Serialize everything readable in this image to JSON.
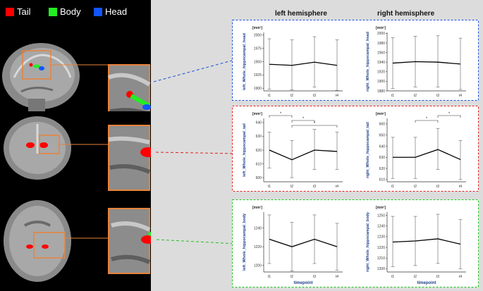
{
  "legend": [
    {
      "label": "Tail",
      "color": "#ff0000"
    },
    {
      "label": "Body",
      "color": "#22ee22"
    },
    {
      "label": "Head",
      "color": "#1155ff"
    }
  ],
  "hemispheres": {
    "left": "left hemisphere",
    "right": "right hemisphere"
  },
  "chart_data": [
    {
      "type": "line",
      "region": "head",
      "hemisphere": "left",
      "unit": "[mm³]",
      "ylabel": "left_Whole_hippocampal_head",
      "categories": [
        "t1",
        "t2",
        "t3",
        "t4"
      ],
      "values": [
        1945,
        1943,
        1949,
        1943
      ],
      "err_low": [
        1898,
        1897,
        1902,
        1896
      ],
      "err_high": [
        1993,
        1991,
        1997,
        1991
      ],
      "ylim": [
        1895,
        2005
      ],
      "ticks": [
        1900,
        1925,
        1950,
        1975,
        2000
      ],
      "xlabel": "",
      "sig": []
    },
    {
      "type": "line",
      "region": "head",
      "hemisphere": "right",
      "unit": "[mm³]",
      "ylabel": "right_Whole_hippocampal_head",
      "categories": [
        "t1",
        "t2",
        "t3",
        "t4"
      ],
      "values": [
        1938,
        1941,
        1940,
        1936
      ],
      "err_low": [
        1885,
        1888,
        1888,
        1883
      ],
      "err_high": [
        1991,
        1994,
        1995,
        1990
      ],
      "ylim": [
        1880,
        2002
      ],
      "ticks": [
        1880,
        1900,
        1920,
        1940,
        1960,
        1980,
        2000
      ],
      "xlabel": "",
      "sig": []
    },
    {
      "type": "line",
      "region": "tail",
      "hemisphere": "left",
      "unit": "[mm³]",
      "ylabel": "left_Whole_hippocampal_tail",
      "categories": [
        "t1",
        "t2",
        "t3",
        "t4"
      ],
      "values": [
        620,
        613,
        620,
        619
      ],
      "err_low": [
        607,
        600,
        606,
        606
      ],
      "err_high": [
        633,
        627,
        635,
        633
      ],
      "ylim": [
        597,
        643
      ],
      "ticks": [
        600,
        610,
        620,
        630,
        640
      ],
      "xlabel": "",
      "sig": [
        {
          "from": 0,
          "to": 1,
          "label": "*",
          "level": 0
        },
        {
          "from": 1,
          "to": 2,
          "label": "*",
          "level": 1
        },
        {
          "from": 1,
          "to": 3,
          "label": "*",
          "level": 2
        }
      ]
    },
    {
      "type": "line",
      "region": "tail",
      "hemisphere": "right",
      "unit": "[mm³]",
      "ylabel": "right_Whole_hippocampal_tail",
      "categories": [
        "t1",
        "t2",
        "t3",
        "t4"
      ],
      "values": [
        630,
        630,
        637,
        628
      ],
      "err_low": [
        611,
        611,
        619,
        610
      ],
      "err_high": [
        648,
        648,
        656,
        645
      ],
      "ylim": [
        608,
        665
      ],
      "ticks": [
        610,
        620,
        630,
        640,
        650,
        660
      ],
      "xlabel": "",
      "sig": [
        {
          "from": 1,
          "to": 2,
          "label": "*",
          "level": 1
        },
        {
          "from": 2,
          "to": 3,
          "label": "*",
          "level": 0
        }
      ]
    },
    {
      "type": "line",
      "region": "body",
      "hemisphere": "left",
      "unit": "[mm³]",
      "ylabel": "left_Whole_hippocampal_body",
      "categories": [
        "t1",
        "t2",
        "t3",
        "t4"
      ],
      "values": [
        1228,
        1220,
        1228,
        1220
      ],
      "err_low": [
        1202,
        1194,
        1202,
        1195
      ],
      "err_high": [
        1254,
        1246,
        1254,
        1245
      ],
      "ylim": [
        1193,
        1257
      ],
      "ticks": [
        1200,
        1220,
        1240
      ],
      "xlabel": "timepoint",
      "sig": []
    },
    {
      "type": "line",
      "region": "body",
      "hemisphere": "right",
      "unit": "[mm³]",
      "ylabel": "right_Whole_hippocampal_body",
      "categories": [
        "t1",
        "t2",
        "t3",
        "t4"
      ],
      "values": [
        1225,
        1226,
        1228,
        1223
      ],
      "err_low": [
        1202,
        1203,
        1205,
        1200
      ],
      "err_high": [
        1249,
        1249,
        1251,
        1246
      ],
      "ylim": [
        1197,
        1253
      ],
      "ticks": [
        1200,
        1210,
        1220,
        1230,
        1240,
        1250
      ],
      "xlabel": "timepoint",
      "sig": []
    }
  ]
}
